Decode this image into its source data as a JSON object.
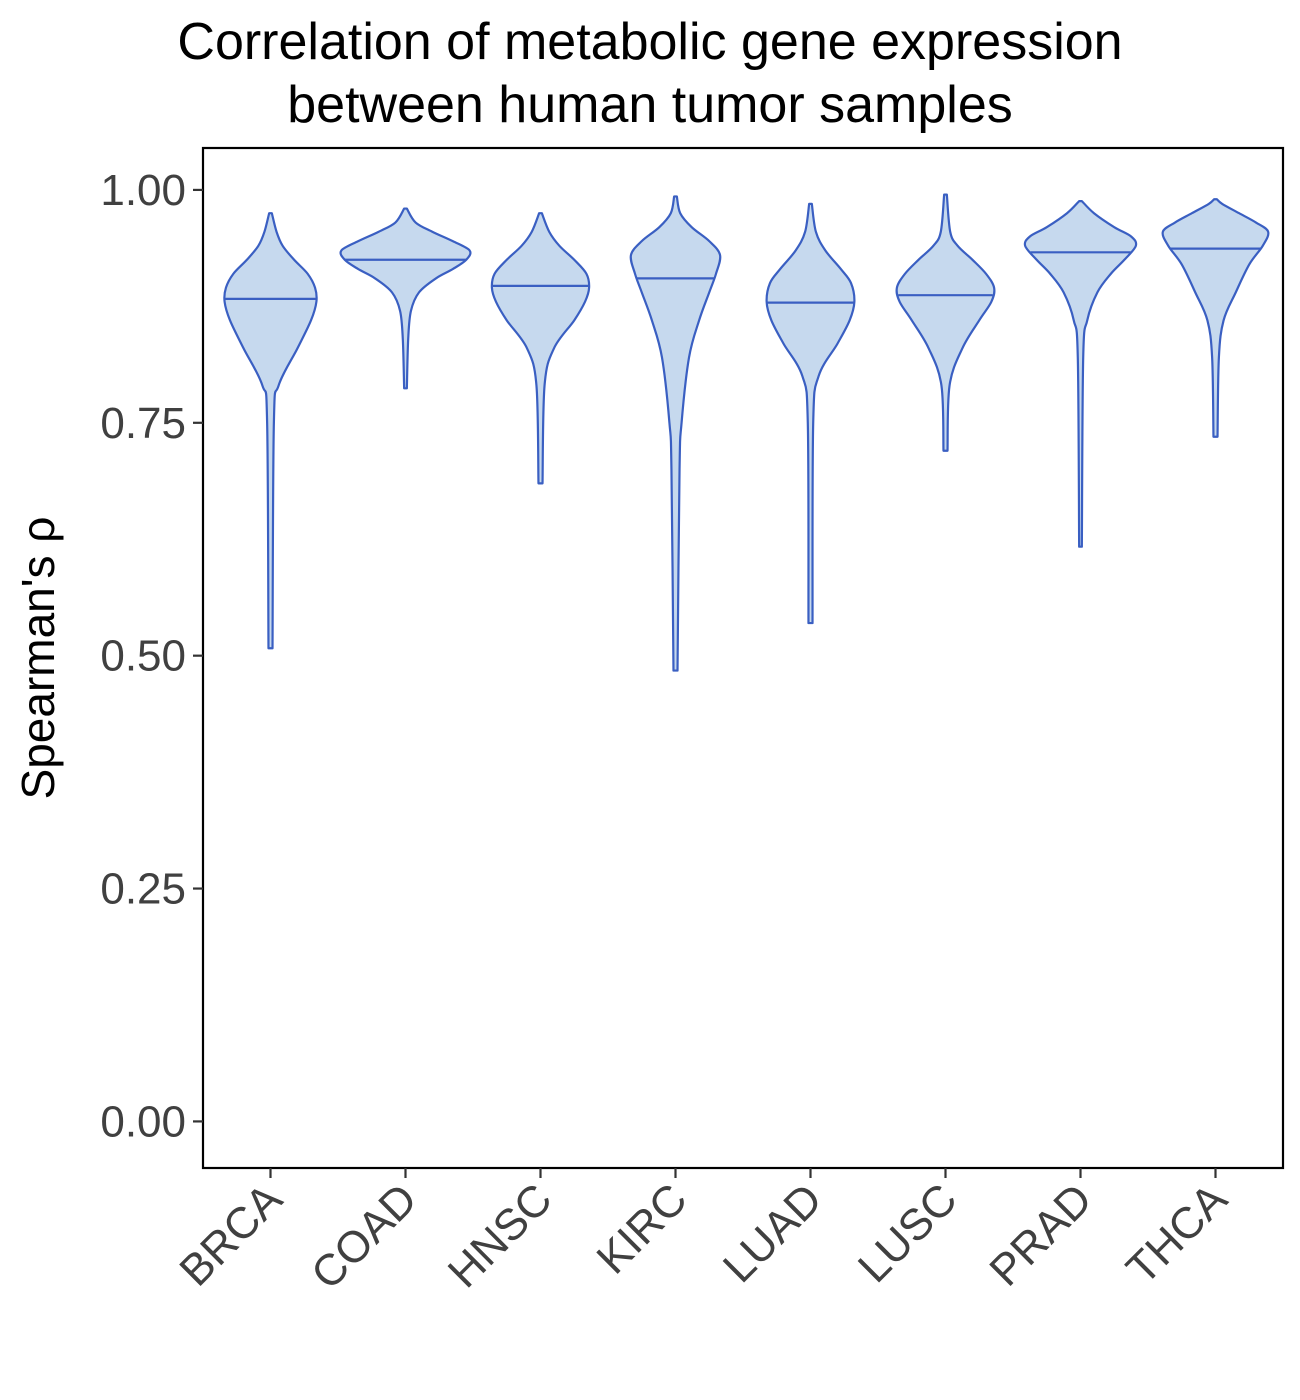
{
  "chart_data": {
    "type": "violin",
    "title": [
      "Correlation of metabolic gene expression",
      "between human tumor samples"
    ],
    "xlabel": "",
    "ylabel": "Spearman's  ρ",
    "ylim": [
      -0.05,
      1.045
    ],
    "yticks": [
      0.0,
      0.25,
      0.5,
      0.75,
      1.0
    ],
    "ytick_labels": [
      "0.00",
      "0.25",
      "0.50",
      "0.75",
      "1.00"
    ],
    "categories": [
      "BRCA",
      "COAD",
      "HNSC",
      "KIRC",
      "LUAD",
      "LUSC",
      "PRAD",
      "THCA"
    ],
    "grid": false,
    "legend": "none",
    "colors": {
      "fill": "#c6d9ee",
      "stroke": "#3a5fc2",
      "frame": "#000000"
    },
    "violins": [
      {
        "category": "BRCA",
        "min": 0.508,
        "max": 0.975,
        "median": 0.883,
        "profile": [
          [
            0.508,
            0.003
          ],
          [
            0.75,
            0.005
          ],
          [
            0.79,
            0.012
          ],
          [
            0.83,
            0.04
          ],
          [
            0.86,
            0.06
          ],
          [
            0.88,
            0.068
          ],
          [
            0.895,
            0.066
          ],
          [
            0.91,
            0.055
          ],
          [
            0.925,
            0.035
          ],
          [
            0.94,
            0.018
          ],
          [
            0.955,
            0.009
          ],
          [
            0.975,
            0.002
          ]
        ]
      },
      {
        "category": "COAD",
        "min": 0.787,
        "max": 0.98,
        "median": 0.925,
        "profile": [
          [
            0.787,
            0.002
          ],
          [
            0.84,
            0.004
          ],
          [
            0.87,
            0.008
          ],
          [
            0.89,
            0.02
          ],
          [
            0.905,
            0.045
          ],
          [
            0.915,
            0.07
          ],
          [
            0.925,
            0.09
          ],
          [
            0.935,
            0.095
          ],
          [
            0.945,
            0.07
          ],
          [
            0.955,
            0.04
          ],
          [
            0.965,
            0.015
          ],
          [
            0.98,
            0.002
          ]
        ]
      },
      {
        "category": "HNSC",
        "min": 0.685,
        "max": 0.975,
        "median": 0.897,
        "profile": [
          [
            0.685,
            0.003
          ],
          [
            0.79,
            0.006
          ],
          [
            0.83,
            0.02
          ],
          [
            0.86,
            0.05
          ],
          [
            0.88,
            0.066
          ],
          [
            0.895,
            0.072
          ],
          [
            0.91,
            0.068
          ],
          [
            0.925,
            0.05
          ],
          [
            0.94,
            0.028
          ],
          [
            0.955,
            0.013
          ],
          [
            0.975,
            0.002
          ]
        ]
      },
      {
        "category": "KIRC",
        "min": 0.484,
        "max": 0.993,
        "median": 0.905,
        "profile": [
          [
            0.484,
            0.003
          ],
          [
            0.7,
            0.006
          ],
          [
            0.75,
            0.009
          ],
          [
            0.82,
            0.02
          ],
          [
            0.86,
            0.035
          ],
          [
            0.89,
            0.05
          ],
          [
            0.91,
            0.06
          ],
          [
            0.93,
            0.066
          ],
          [
            0.945,
            0.05
          ],
          [
            0.96,
            0.024
          ],
          [
            0.975,
            0.007
          ],
          [
            0.993,
            0.002
          ]
        ]
      },
      {
        "category": "LUAD",
        "min": 0.535,
        "max": 0.985,
        "median": 0.879,
        "profile": [
          [
            0.535,
            0.003
          ],
          [
            0.75,
            0.004
          ],
          [
            0.8,
            0.012
          ],
          [
            0.835,
            0.04
          ],
          [
            0.86,
            0.058
          ],
          [
            0.88,
            0.065
          ],
          [
            0.9,
            0.06
          ],
          [
            0.915,
            0.045
          ],
          [
            0.935,
            0.022
          ],
          [
            0.955,
            0.008
          ],
          [
            0.985,
            0.002
          ]
        ]
      },
      {
        "category": "LUSC",
        "min": 0.72,
        "max": 0.995,
        "median": 0.887,
        "profile": [
          [
            0.72,
            0.003
          ],
          [
            0.79,
            0.006
          ],
          [
            0.83,
            0.025
          ],
          [
            0.86,
            0.05
          ],
          [
            0.88,
            0.068
          ],
          [
            0.895,
            0.072
          ],
          [
            0.91,
            0.06
          ],
          [
            0.925,
            0.04
          ],
          [
            0.94,
            0.018
          ],
          [
            0.955,
            0.007
          ],
          [
            0.995,
            0.002
          ]
        ]
      },
      {
        "category": "PRAD",
        "min": 0.617,
        "max": 0.988,
        "median": 0.933,
        "profile": [
          [
            0.617,
            0.002
          ],
          [
            0.82,
            0.004
          ],
          [
            0.86,
            0.01
          ],
          [
            0.89,
            0.025
          ],
          [
            0.91,
            0.045
          ],
          [
            0.925,
            0.065
          ],
          [
            0.94,
            0.082
          ],
          [
            0.95,
            0.075
          ],
          [
            0.96,
            0.05
          ],
          [
            0.975,
            0.02
          ],
          [
            0.988,
            0.002
          ]
        ]
      },
      {
        "category": "THCA",
        "min": 0.735,
        "max": 0.99,
        "median": 0.937,
        "profile": [
          [
            0.735,
            0.003
          ],
          [
            0.82,
            0.005
          ],
          [
            0.86,
            0.012
          ],
          [
            0.89,
            0.03
          ],
          [
            0.92,
            0.05
          ],
          [
            0.94,
            0.07
          ],
          [
            0.955,
            0.078
          ],
          [
            0.965,
            0.06
          ],
          [
            0.975,
            0.035
          ],
          [
            0.985,
            0.01
          ],
          [
            0.99,
            0.002
          ]
        ]
      }
    ]
  }
}
